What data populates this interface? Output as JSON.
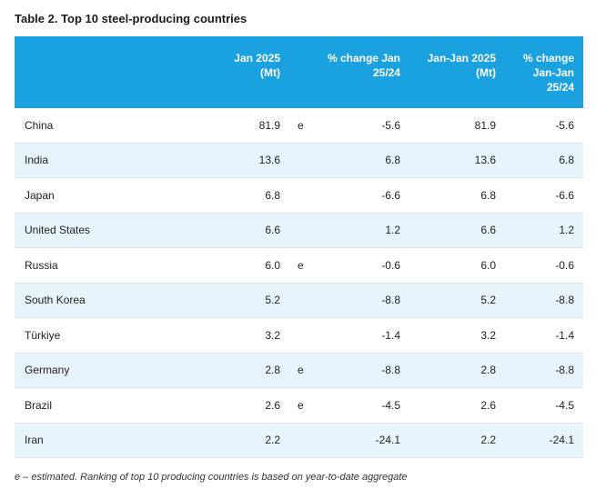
{
  "title": "Table 2. Top 10 steel-producing countries",
  "headers": {
    "jan": [
      "Jan 2025",
      "(Mt)"
    ],
    "chg": [
      "% change Jan",
      "25/24"
    ],
    "ytd": [
      "Jan-Jan 2025",
      "(Mt)"
    ],
    "ytdchg": [
      "% change",
      "Jan-Jan",
      "25/24"
    ]
  },
  "rows": [
    {
      "country": "China",
      "jan": "81.9",
      "e": "e",
      "chg": "-5.6",
      "ytd": "81.9",
      "ytdchg": "-5.6"
    },
    {
      "country": "India",
      "jan": "13.6",
      "e": "",
      "chg": "6.8",
      "ytd": "13.6",
      "ytdchg": "6.8"
    },
    {
      "country": "Japan",
      "jan": "6.8",
      "e": "",
      "chg": "-6.6",
      "ytd": "6.8",
      "ytdchg": "-6.6"
    },
    {
      "country": "United States",
      "jan": "6.6",
      "e": "",
      "chg": "1.2",
      "ytd": "6.6",
      "ytdchg": "1.2"
    },
    {
      "country": "Russia",
      "jan": "6.0",
      "e": "e",
      "chg": "-0.6",
      "ytd": "6.0",
      "ytdchg": "-0.6"
    },
    {
      "country": "South Korea",
      "jan": "5.2",
      "e": "",
      "chg": "-8.8",
      "ytd": "5.2",
      "ytdchg": "-8.8"
    },
    {
      "country": "Türkiye",
      "jan": "3.2",
      "e": "",
      "chg": "-1.4",
      "ytd": "3.2",
      "ytdchg": "-1.4"
    },
    {
      "country": "Germany",
      "jan": "2.8",
      "e": "e",
      "chg": "-8.8",
      "ytd": "2.8",
      "ytdchg": "-8.8"
    },
    {
      "country": "Brazil",
      "jan": "2.6",
      "e": "e",
      "chg": "-4.5",
      "ytd": "2.6",
      "ytdchg": "-4.5"
    },
    {
      "country": "Iran",
      "jan": "2.2",
      "e": "",
      "chg": "-24.1",
      "ytd": "2.2",
      "ytdchg": "-24.1"
    }
  ],
  "footnote": "e – estimated. Ranking of top 10 producing countries is based on year-to-date aggregate",
  "colors": {
    "header_bg": "#1aa1df",
    "alt_row_bg": "#e8f4fb"
  }
}
